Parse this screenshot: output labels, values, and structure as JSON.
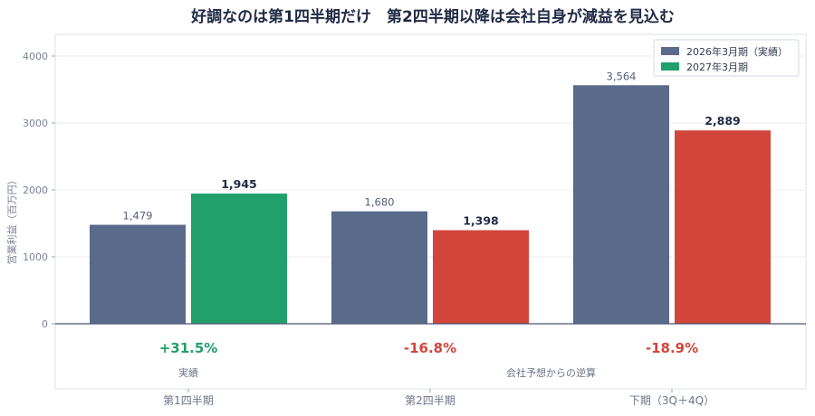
{
  "chart_data": {
    "type": "bar",
    "title": "好調なのは第1四半期だけ　第2四半期以降は会社自身が減益を見込む",
    "ylabel": "営業利益（百万円）",
    "ylim": [
      0,
      4300
    ],
    "yticks": [
      0,
      1000,
      2000,
      3000,
      4000
    ],
    "grid": true,
    "legend_position": "top-right",
    "categories": [
      "第1四半期",
      "第2四半期",
      "下期（3Q＋4Q）"
    ],
    "series": [
      {
        "name": "2026年3月期（実績）",
        "values": [
          1479,
          1680,
          3564
        ],
        "labels": [
          "1,479",
          "1,680",
          "3,564"
        ],
        "color": "#5a6a8a"
      },
      {
        "name": "2027年3月期",
        "values": [
          1945,
          1398,
          2889
        ],
        "labels": [
          "1,945",
          "1,398",
          "2,889"
        ],
        "colors": [
          "#22a06b",
          "#d2453b",
          "#d2453b"
        ]
      }
    ],
    "changes": [
      {
        "label": "+31.5%",
        "color": "#22a06b",
        "note": "実績"
      },
      {
        "label": "-16.8%",
        "color": "#d2453b",
        "note": ""
      },
      {
        "label": "-18.9%",
        "color": "#d2453b",
        "note": ""
      }
    ],
    "group_note": "会社予想からの逆算"
  }
}
